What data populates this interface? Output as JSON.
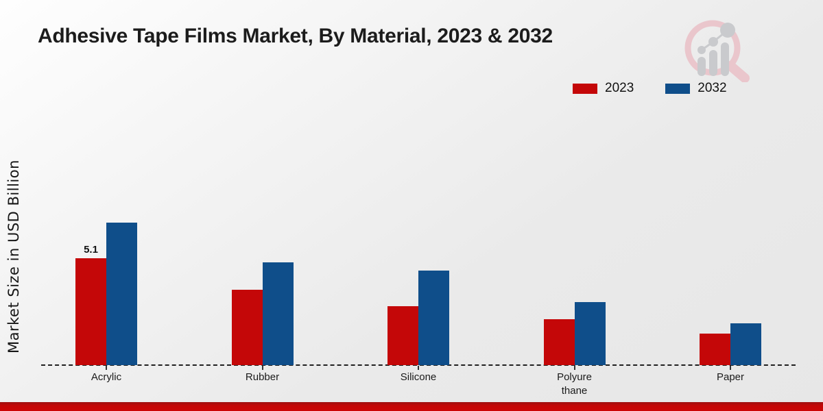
{
  "page": {
    "title": "Adhesive Tape Films Market, By Material, 2023 & 2032"
  },
  "y_axis_label": "Market Size in USD Billion",
  "legend": {
    "position": "top-right",
    "items": [
      {
        "label": "2023",
        "color": "#c40708"
      },
      {
        "label": "2032",
        "color": "#0f4e8a"
      }
    ]
  },
  "icons": {
    "logo": "market-research-magnifier-bar-chart-logo"
  },
  "colors": {
    "series_2023": "#c40708",
    "series_2032": "#0f4e8a",
    "footer_bar": "#c40707",
    "baseline": "#1f1f1f"
  },
  "chart_data": {
    "type": "bar",
    "title": "Adhesive Tape Films Market, By Material, 2023 & 2032",
    "xlabel": "",
    "ylabel": "Market Size in USD Billion",
    "categories": [
      "Acrylic",
      "Rubber",
      "Silicone",
      "Polyure\nthane",
      "Paper"
    ],
    "series": [
      {
        "name": "2023",
        "color": "#c40708",
        "values": [
          5.1,
          3.6,
          2.8,
          2.2,
          1.5
        ]
      },
      {
        "name": "2032",
        "color": "#0f4e8a",
        "values": [
          6.8,
          4.9,
          4.5,
          3.0,
          2.0
        ]
      }
    ],
    "value_labels": [
      {
        "series_index": 0,
        "category_index": 0,
        "text": "5.1"
      }
    ],
    "ylim": [
      0,
      7.5
    ],
    "grid": false,
    "y_axis_ticks_visible": false,
    "baseline_style": "dashed",
    "legend_position": "top-right"
  }
}
